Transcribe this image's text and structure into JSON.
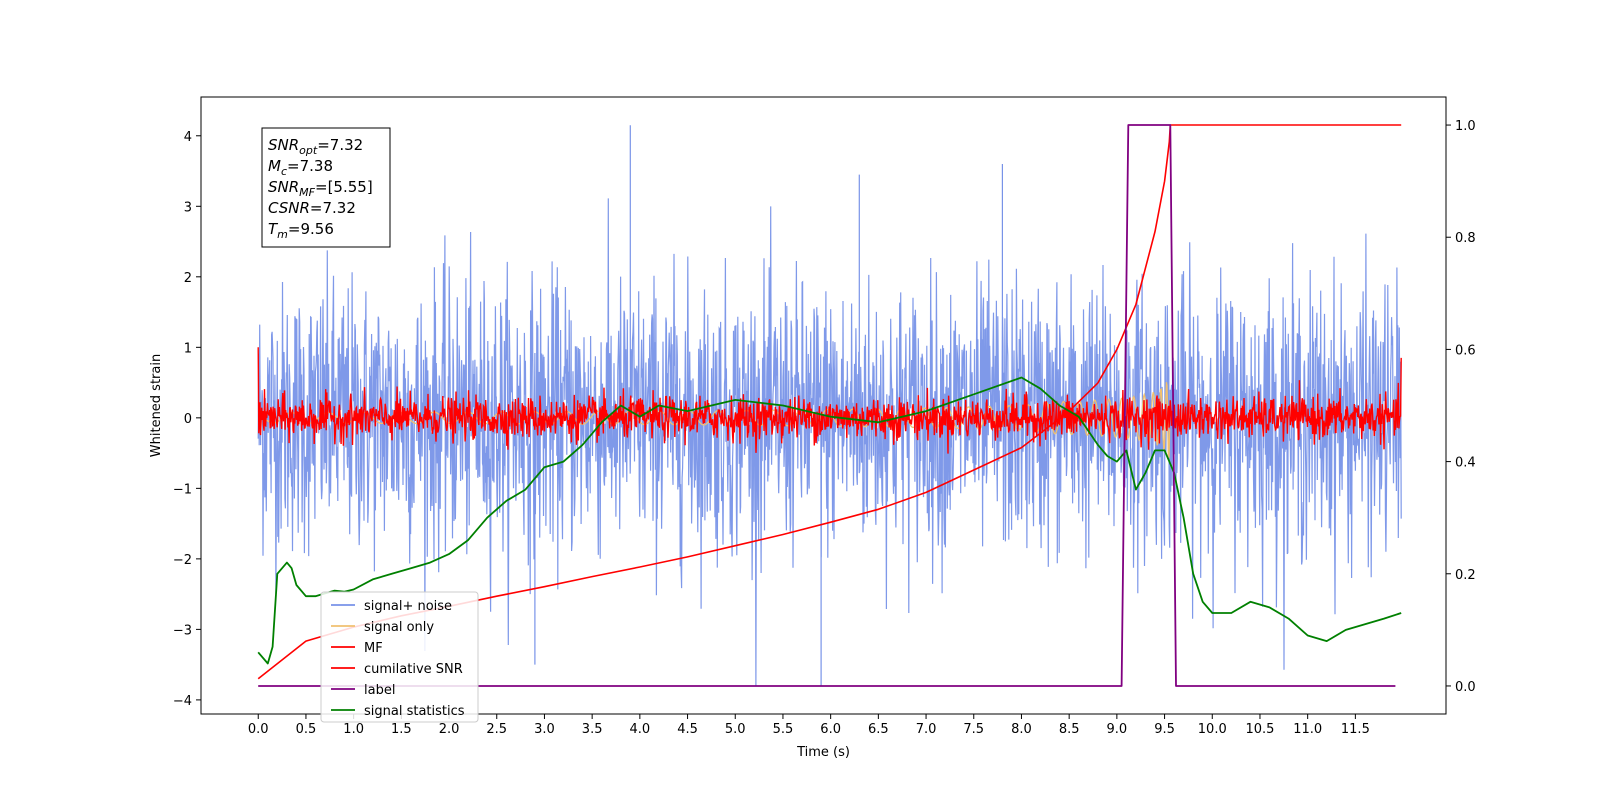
{
  "chart_data": {
    "type": "line",
    "title": "",
    "xlabel": "Time (s)",
    "ylabel": "Whitened strain",
    "y2label": "",
    "xlim": [
      -0.6,
      12.45
    ],
    "ylim": [
      -4.2,
      4.55
    ],
    "y2lim": [
      -0.05,
      1.05
    ],
    "x_ticks": [
      "0.0",
      "0.5",
      "1.0",
      "1.5",
      "2.0",
      "2.5",
      "3.0",
      "3.5",
      "4.0",
      "4.5",
      "5.0",
      "5.5",
      "6.0",
      "6.5",
      "7.0",
      "7.5",
      "8.0",
      "8.5",
      "9.0",
      "9.5",
      "10.0",
      "10.5",
      "11.0",
      "11.5"
    ],
    "y_ticks": [
      "4",
      "3",
      "2",
      "1",
      "0",
      "−1",
      "−2",
      "−3",
      "−4"
    ],
    "y2_ticks": [
      "1.0",
      "0.8",
      "0.6",
      "0.4",
      "0.2",
      "0.0"
    ],
    "grid": false,
    "legend_position": "lower-left",
    "annotation": {
      "snr_opt_label": "SNR",
      "snr_opt_sub": "opt",
      "snr_opt_value": "=7.32",
      "mc_label": "M",
      "mc_sub": "c",
      "mc_value": "=7.38",
      "snr_mf_label": "SNR",
      "snr_mf_sub": "MF",
      "snr_mf_value": "=[5.55]",
      "csnr_label": "CSNR",
      "csnr_value": "=7.32",
      "tm_label": "T",
      "tm_sub": "m",
      "tm_value": "=9.56"
    },
    "series": [
      {
        "name": "signal+ noise",
        "color": "#7893e8",
        "axis": "left",
        "kind": "noise",
        "x_range": [
          0,
          11.98
        ],
        "approx_std": 0.95,
        "peak_max": 4.15,
        "peak_min": -3.8
      },
      {
        "name": "signal only",
        "color": "#f0c070",
        "axis": "left",
        "kind": "chirp",
        "x_range": [
          0,
          9.56
        ],
        "peak_amplitude": 0.75
      },
      {
        "name": "MF",
        "color": "#ff0000",
        "axis": "left",
        "kind": "noise",
        "x_range": [
          0,
          11.98
        ],
        "approx_std": 0.15,
        "start_value": 1.0,
        "end_value": 0.85
      },
      {
        "name": "cumilative SNR",
        "color": "#ff0000",
        "axis": "right",
        "x": [
          0,
          0.5,
          1,
          1.5,
          2,
          2.5,
          3,
          3.5,
          4,
          4.5,
          5,
          5.5,
          6,
          6.5,
          7,
          7.5,
          8,
          8.5,
          8.8,
          9.0,
          9.2,
          9.4,
          9.5,
          9.55,
          9.56,
          11.98
        ],
        "y": [
          0.013,
          0.08,
          0.105,
          0.125,
          0.142,
          0.16,
          0.177,
          0.195,
          0.212,
          0.23,
          0.25,
          0.27,
          0.292,
          0.315,
          0.345,
          0.385,
          0.425,
          0.49,
          0.54,
          0.6,
          0.68,
          0.81,
          0.9,
          0.97,
          1.0,
          1.0
        ]
      },
      {
        "name": "label",
        "color": "#800080",
        "axis": "right",
        "x": [
          0,
          9.05,
          9.12,
          9.56,
          9.62,
          11.92
        ],
        "y": [
          0,
          0,
          1.0,
          1.0,
          0,
          0
        ]
      },
      {
        "name": "signal statistics",
        "color": "#008000",
        "axis": "right",
        "x": [
          0,
          0.1,
          0.15,
          0.2,
          0.3,
          0.35,
          0.4,
          0.5,
          0.6,
          0.7,
          0.8,
          0.9,
          1.0,
          1.2,
          1.4,
          1.6,
          1.8,
          2.0,
          2.2,
          2.4,
          2.6,
          2.8,
          3.0,
          3.2,
          3.4,
          3.6,
          3.8,
          4.0,
          4.2,
          4.5,
          5.0,
          5.5,
          6.0,
          6.5,
          7.0,
          7.5,
          8.0,
          8.2,
          8.4,
          8.6,
          8.8,
          8.9,
          9.0,
          9.1,
          9.2,
          9.3,
          9.4,
          9.5,
          9.6,
          9.7,
          9.8,
          9.9,
          10.0,
          10.2,
          10.4,
          10.6,
          10.8,
          11.0,
          11.2,
          11.4,
          11.6,
          11.8,
          11.98
        ],
        "y": [
          0.06,
          0.04,
          0.07,
          0.2,
          0.22,
          0.21,
          0.18,
          0.16,
          0.16,
          0.165,
          0.17,
          0.168,
          0.172,
          0.19,
          0.2,
          0.21,
          0.22,
          0.235,
          0.26,
          0.3,
          0.33,
          0.35,
          0.39,
          0.4,
          0.43,
          0.47,
          0.5,
          0.48,
          0.5,
          0.49,
          0.51,
          0.5,
          0.48,
          0.47,
          0.49,
          0.52,
          0.55,
          0.53,
          0.5,
          0.48,
          0.43,
          0.41,
          0.4,
          0.42,
          0.35,
          0.38,
          0.42,
          0.42,
          0.38,
          0.3,
          0.2,
          0.15,
          0.13,
          0.13,
          0.15,
          0.14,
          0.12,
          0.09,
          0.08,
          0.1,
          0.11,
          0.12,
          0.13
        ]
      }
    ]
  }
}
